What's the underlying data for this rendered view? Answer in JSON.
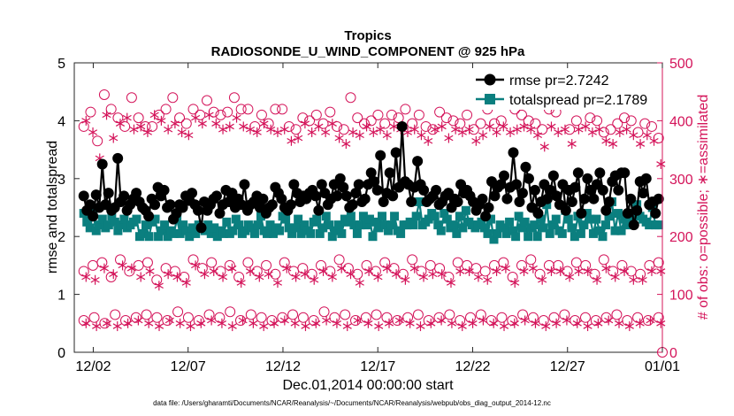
{
  "chart_data": {
    "type": "line",
    "title": "Tropics",
    "subtitle": "RADIOSONDE_U_WIND_COMPONENT @ 925 hPa",
    "xlabel": "Dec.01,2014 00:00:00 start",
    "ylabel": "rmse and totalspread",
    "y2label": "# of obs: o=possible; ∗=assimilated",
    "footnote": "data file: /Users/gharamti/Documents/NCAR/Reanalysis/~/Documents/NCAR/Reanalysis/webpub/obs_diag_output_2014-12.nc",
    "xlim": [
      0.5,
      31.5
    ],
    "ylim": [
      0,
      5
    ],
    "y2lim": [
      0,
      500
    ],
    "x_ticks": [
      1.5,
      6.5,
      11.5,
      16.5,
      21.5,
      26.5,
      31.5
    ],
    "x_tick_labels": [
      "12/02",
      "12/07",
      "12/12",
      "12/17",
      "12/22",
      "12/27",
      "01/01"
    ],
    "y_ticks": [
      0,
      1,
      2,
      3,
      4,
      5
    ],
    "y2_ticks": [
      0,
      100,
      200,
      300,
      400,
      500
    ],
    "legend_position": "top-right",
    "colors": {
      "rmse": "#000000",
      "spread": "#0b7f7f",
      "obs": "#d4145a"
    },
    "series": [
      {
        "name": "rmse pr=2.7242",
        "axis": "left",
        "marker": "circle",
        "values": [
          2.7,
          2.45,
          2.55,
          2.35,
          2.72,
          2.5,
          3.25,
          2.55,
          2.75,
          2.45,
          2.5,
          3.35,
          2.6,
          2.7,
          2.45,
          2.55,
          2.65,
          2.75,
          2.6,
          2.5,
          2.45,
          2.35,
          2.65,
          2.55,
          2.85,
          2.7,
          2.8,
          2.5,
          2.55,
          2.3,
          2.4,
          2.55,
          2.5,
          2.7,
          2.62,
          2.75,
          2.55,
          2.45,
          2.15,
          2.6,
          2.45,
          2.55,
          2.65,
          2.7,
          2.4,
          2.55,
          2.8,
          2.6,
          2.75,
          2.5,
          2.65,
          2.55,
          2.9,
          2.45,
          2.55,
          2.6,
          2.7,
          2.5,
          2.65,
          2.4,
          2.5,
          2.55,
          2.85,
          2.75,
          2.65,
          2.5,
          2.45,
          2.55,
          2.9,
          2.75,
          2.6,
          2.7,
          2.65,
          2.75,
          2.8,
          2.7,
          2.45,
          2.9,
          2.75,
          2.55,
          2.65,
          2.9,
          2.7,
          3.0,
          2.85,
          2.7,
          2.5,
          2.55,
          2.75,
          2.9,
          2.6,
          2.65,
          2.9,
          3.1,
          2.95,
          2.8,
          3.4,
          2.6,
          2.75,
          3.1,
          2.7,
          3.45,
          2.85,
          3.9,
          2.95,
          2.9,
          2.6,
          2.85,
          3.3,
          2.9,
          2.8,
          2.6,
          2.65,
          2.7,
          2.8,
          2.55,
          2.6,
          2.7,
          2.75,
          2.5,
          2.65,
          2.6,
          2.9,
          2.75,
          2.8,
          2.7,
          2.6,
          2.45,
          2.55,
          2.65,
          2.35,
          2.5,
          2.95,
          2.7,
          2.85,
          2.9,
          3.05,
          2.65,
          2.85,
          3.45,
          2.9,
          2.6,
          2.75,
          3.2,
          3.0,
          2.5,
          2.8,
          2.4,
          2.6,
          2.9,
          2.65,
          2.8,
          3.05,
          2.7,
          2.55,
          2.9,
          2.45,
          2.8,
          2.6,
          2.85,
          3.1,
          2.4,
          2.65,
          3.0,
          2.8,
          2.65,
          2.9,
          3.1,
          2.8,
          2.45,
          2.6,
          2.95,
          3.05,
          2.8,
          3.1,
          3.1,
          2.4,
          2.65,
          2.2,
          2.45,
          2.95,
          2.75,
          3.0,
          2.55,
          2.6,
          2.4,
          2.65
        ]
      },
      {
        "name": "totalspread pr=2.1789",
        "axis": "left",
        "marker": "square",
        "values": [
          2.4,
          2.25,
          2.15,
          2.4,
          2.1,
          2.2,
          2.3,
          2.15,
          2.2,
          2.35,
          2.25,
          2.1,
          2.2,
          2.3,
          2.15,
          2.2,
          2.25,
          2.3,
          2.0,
          2.05,
          2.2,
          2.0,
          2.25,
          2.3,
          2.0,
          2.1,
          2.2,
          2.0,
          2.1,
          2.05,
          2.3,
          2.05,
          2.2,
          2.1,
          2.0,
          2.15,
          2.05,
          2.2,
          2.15,
          2.1,
          2.2,
          2.05,
          2.15,
          2.0,
          2.1,
          2.05,
          2.25,
          2.05,
          2.1,
          2.3,
          2.2,
          2.05,
          2.1,
          2.2,
          2.15,
          2.05,
          2.2,
          2.35,
          2.1,
          2.05,
          2.2,
          2.05,
          2.15,
          2.1,
          2.35,
          2.3,
          2.15,
          2.05,
          2.15,
          2.3,
          2.05,
          2.2,
          2.1,
          2.05,
          2.25,
          2.3,
          2.05,
          2.15,
          2.35,
          2.2,
          2.0,
          2.1,
          2.2,
          2.05,
          2.3,
          2.25,
          2.35,
          2.2,
          2.05,
          2.2,
          2.35,
          2.2,
          2.3,
          2.0,
          2.25,
          2.15,
          2.35,
          2.2,
          2.1,
          2.2,
          2.35,
          2.1,
          2.05,
          2.2,
          2.2,
          2.25,
          2.2,
          2.35,
          2.6,
          2.2,
          2.25,
          2.3,
          2.4,
          2.35,
          2.2,
          2.1,
          2.4,
          2.3,
          2.15,
          2.2,
          2.05,
          2.35,
          2.15,
          2.45,
          2.25,
          2.2,
          2.15,
          2.2,
          2.25,
          2.15,
          2.05,
          2.3,
          1.95,
          2.05,
          2.2,
          2.15,
          2.05,
          2.25,
          2.1,
          2.0,
          2.35,
          2.15,
          2.25,
          2.0,
          2.15,
          2.2,
          2.0,
          2.3,
          2.15,
          2.55,
          2.05,
          2.2,
          2.3,
          2.1,
          2.05,
          2.45,
          2.3,
          2.15,
          2.0,
          2.35,
          2.05,
          2.2,
          2.4,
          2.3,
          2.05,
          2.3,
          2.1,
          2.0,
          2.2,
          2.35,
          2.6,
          2.1,
          2.4,
          2.1,
          2.3,
          2.2,
          2.35,
          2.4,
          2.55,
          2.35,
          2.3,
          2.25,
          2.2,
          2.5,
          2.2,
          2.2
        ]
      },
      {
        "name": "obs possible (upper)",
        "axis": "right",
        "marker": "open-circle",
        "values": [
          390,
          415,
          365,
          445,
          420,
          405,
          390,
          440,
          405,
          390,
          390,
          410,
          420,
          440,
          405,
          395,
          420,
          410,
          435,
          415,
          410,
          415,
          440,
          420,
          420,
          390,
          410,
          395,
          420,
          420,
          390,
          385,
          405,
          400,
          410,
          395,
          415,
          390,
          385,
          440,
          405,
          395,
          400,
          410,
          395,
          410,
          405,
          420,
          395,
          410,
          390,
          385,
          415,
          405,
          400,
          395,
          410,
          385,
          395,
          420,
          395,
          400,
          430,
          420,
          410,
          400,
          395,
          385,
          420,
          415,
          430,
          385,
          400,
          430,
          405,
          400,
          380,
          385,
          395,
          405,
          400,
          380,
          395,
          390,
          370
        ]
      },
      {
        "name": "obs assimilated (upper)",
        "axis": "right",
        "marker": "asterisk",
        "values": [
          400,
          380,
          335,
          410,
          370,
          395,
          405,
          385,
          390,
          380,
          410,
          400,
          385,
          395,
          380,
          375,
          405,
          395,
          410,
          395,
          385,
          390,
          405,
          390,
          385,
          380,
          395,
          385,
          380,
          385,
          365,
          370,
          395,
          380,
          390,
          380,
          395,
          370,
          360,
          380,
          375,
          390,
          380,
          385,
          375,
          390,
          385,
          380,
          385,
          375,
          365,
          385,
          390,
          370,
          385,
          380,
          385,
          365,
          375,
          390,
          380,
          390,
          380,
          385,
          390,
          385,
          375,
          355,
          390,
          380,
          385,
          360,
          385,
          390,
          380,
          385,
          365,
          360,
          380,
          385,
          375,
          360,
          375,
          365,
          325
        ]
      },
      {
        "name": "obs possible (middle)",
        "axis": "right",
        "marker": "open-circle",
        "values": [
          140,
          150,
          155,
          130,
          160,
          140,
          150,
          155,
          125,
          145,
          140,
          130,
          160,
          145,
          155,
          140,
          150,
          130,
          155,
          140,
          150,
          135,
          155,
          140,
          145,
          135,
          150,
          140,
          160,
          145,
          135,
          150,
          140,
          155,
          145,
          135,
          160,
          140,
          150,
          145,
          130,
          155,
          150,
          145,
          140,
          150,
          155,
          130,
          150,
          160,
          135,
          150,
          150,
          140,
          155,
          150,
          135,
          160,
          140,
          150,
          140,
          135,
          150,
          155
        ]
      },
      {
        "name": "obs assimilated (middle)",
        "axis": "right",
        "marker": "asterisk",
        "values": [
          130,
          125,
          145,
          135,
          150,
          145,
          130,
          140,
          115,
          135,
          130,
          120,
          150,
          135,
          140,
          130,
          145,
          120,
          140,
          130,
          135,
          120,
          145,
          130,
          135,
          125,
          140,
          130,
          145,
          135,
          120,
          140,
          130,
          145,
          135,
          125,
          145,
          130,
          135,
          135,
          120,
          140,
          140,
          130,
          125,
          140,
          145,
          120,
          140,
          145,
          125,
          140,
          140,
          130,
          140,
          140,
          125,
          145,
          130,
          140,
          125,
          125,
          140,
          140
        ]
      },
      {
        "name": "obs possible (lower)",
        "axis": "right",
        "marker": "open-circle",
        "values": [
          55,
          60,
          50,
          65,
          55,
          60,
          65,
          60,
          55,
          70,
          60,
          55,
          65,
          60,
          70,
          55,
          65,
          60,
          55,
          60,
          65,
          60,
          55,
          70,
          60,
          65,
          55,
          60,
          65,
          60,
          55,
          60,
          65,
          55,
          60,
          65,
          55,
          60,
          65,
          55,
          60,
          55,
          65,
          60,
          55,
          60,
          65,
          55,
          60,
          55,
          60,
          65,
          55,
          60,
          55,
          60
        ]
      },
      {
        "name": "obs assimilated (lower)",
        "axis": "right",
        "marker": "asterisk",
        "values": [
          50,
          45,
          50,
          45,
          50,
          55,
          50,
          45,
          55,
          50,
          45,
          50,
          55,
          50,
          45,
          55,
          50,
          45,
          50,
          55,
          50,
          45,
          50,
          55,
          50,
          45,
          55,
          50,
          45,
          50,
          55,
          50,
          45,
          50,
          55,
          50,
          45,
          50,
          55,
          50,
          45,
          50,
          55,
          50,
          45,
          50,
          55,
          50,
          45,
          50,
          55,
          50,
          45,
          50,
          55,
          50
        ]
      }
    ]
  }
}
